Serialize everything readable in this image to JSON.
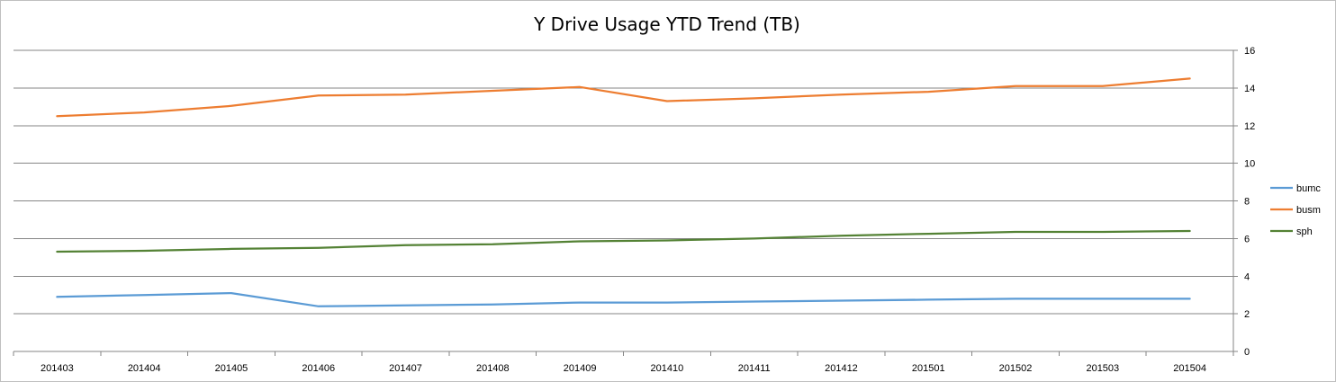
{
  "chart_data": {
    "type": "line",
    "title": "Y Drive Usage YTD Trend (TB)",
    "xlabel": "",
    "ylabel": "",
    "categories": [
      "201403",
      "201404",
      "201405",
      "201406",
      "201407",
      "201408",
      "201409",
      "201410",
      "201411",
      "201412",
      "201501",
      "201502",
      "201503",
      "201504"
    ],
    "ylim": [
      0,
      16
    ],
    "yticks": [
      "0",
      "2",
      "4",
      "6",
      "8",
      "10",
      "12",
      "14",
      "16"
    ],
    "y_axis_side": "right",
    "grid": true,
    "legend_position": "right",
    "series": [
      {
        "name": "bumc",
        "color": "#5b9bd5",
        "values": [
          2.9,
          3.0,
          3.1,
          2.4,
          2.45,
          2.5,
          2.6,
          2.6,
          2.65,
          2.7,
          2.75,
          2.8,
          2.8,
          2.8
        ]
      },
      {
        "name": "busm",
        "color": "#ed7d31",
        "values": [
          12.5,
          12.7,
          13.05,
          13.6,
          13.65,
          13.85,
          14.05,
          13.3,
          13.45,
          13.65,
          13.8,
          14.1,
          14.1,
          14.5
        ]
      },
      {
        "name": "sph",
        "color": "#548235",
        "values": [
          5.3,
          5.35,
          5.45,
          5.5,
          5.65,
          5.7,
          5.85,
          5.9,
          6.0,
          6.15,
          6.25,
          6.35,
          6.35,
          6.4
        ]
      }
    ]
  }
}
